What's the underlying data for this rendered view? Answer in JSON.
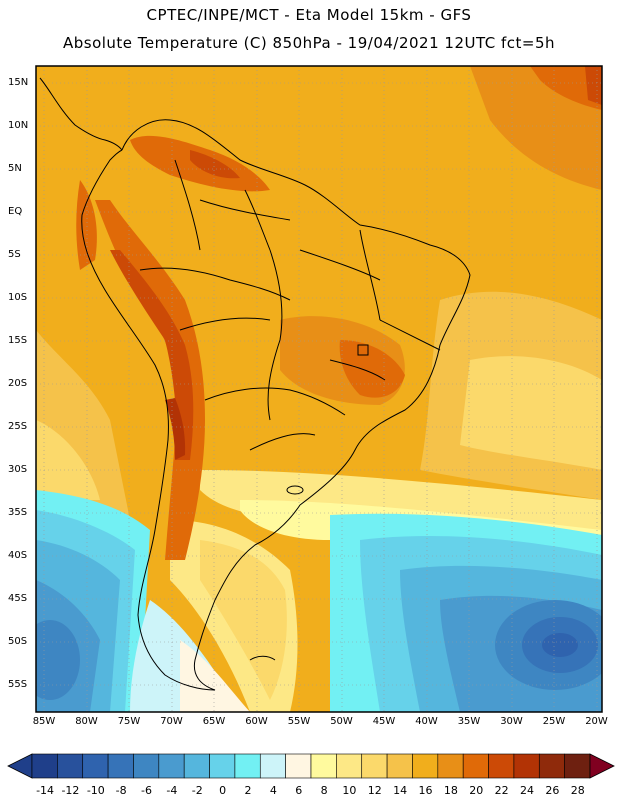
{
  "header": {
    "line1": "CPTEC/INPE/MCT -  Eta Model 15km - GFS",
    "line2": "Absolute Temperature (C) 850hPa - 19/04/2021 12UTC fct=5h"
  },
  "latitude_labels": [
    "15N",
    "10N",
    "5N",
    "EQ",
    "5S",
    "10S",
    "15S",
    "20S",
    "25S",
    "30S",
    "35S",
    "40S",
    "45S",
    "50S",
    "55S"
  ],
  "longitude_labels": [
    "85W",
    "80W",
    "75W",
    "70W",
    "65W",
    "60W",
    "55W",
    "50W",
    "45W",
    "40W",
    "35W",
    "30W",
    "25W",
    "20W"
  ],
  "colorbar": {
    "labels": [
      "-14",
      "-12",
      "-10",
      "-8",
      "-6",
      "-4",
      "-2",
      "0",
      "2",
      "4",
      "6",
      "8",
      "10",
      "12",
      "14",
      "16",
      "18",
      "20",
      "22",
      "24",
      "26",
      "28"
    ],
    "colors": [
      "#1f3f8a",
      "#28519c",
      "#2f63ae",
      "#3673b8",
      "#3e86c2",
      "#4a9bcf",
      "#55b6dd",
      "#66d2ea",
      "#72f0f3",
      "#cdf4f9",
      "#fff6e2",
      "#fffa9e",
      "#fde886",
      "#fbd96b",
      "#f5c24a",
      "#f1ae1c",
      "#e88f17",
      "#e06a08",
      "#cc4a06",
      "#b23305",
      "#8f2a0b",
      "#6e2010"
    ]
  }
}
